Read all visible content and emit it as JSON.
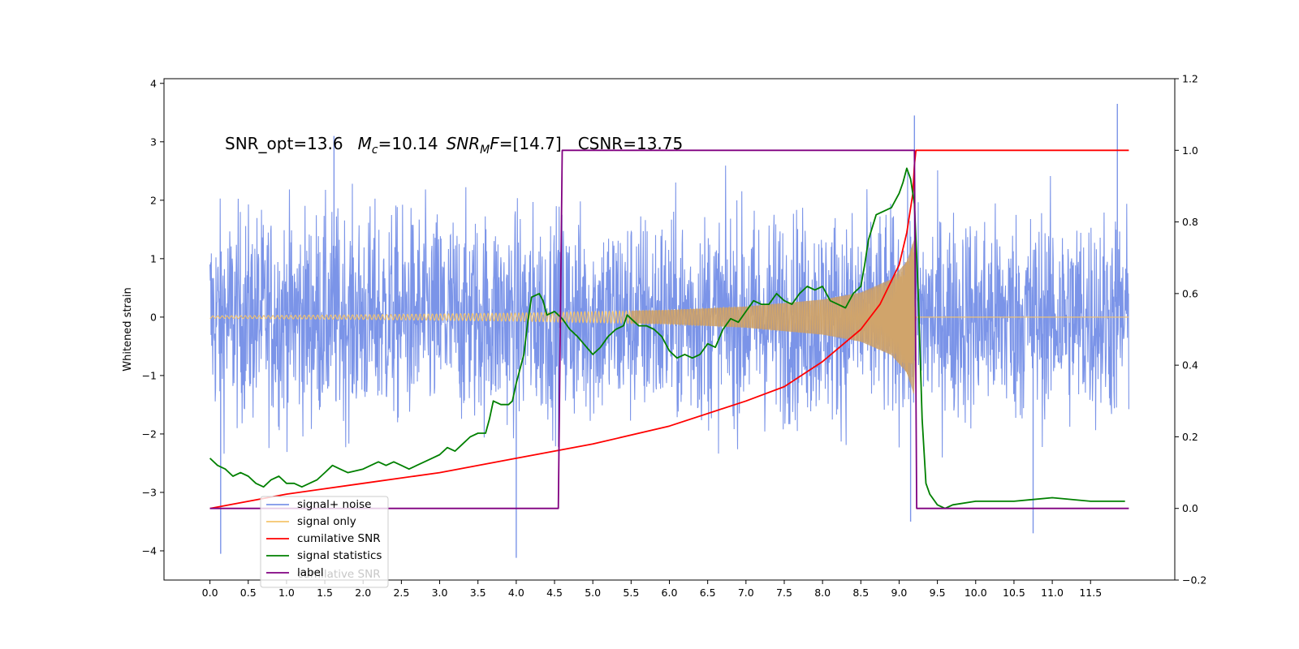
{
  "chart_data": {
    "type": "line",
    "ylabel": "Whitened strain",
    "xlabel": "",
    "xlim": [
      -0.6,
      12.6
    ],
    "ylim": [
      -4.5,
      4.08
    ],
    "y2lim": [
      -0.2,
      1.2
    ],
    "xticks": [
      "0.0",
      "0.5",
      "1.0",
      "1.5",
      "2.0",
      "2.5",
      "3.0",
      "3.5",
      "4.0",
      "4.5",
      "5.0",
      "5.5",
      "6.0",
      "6.5",
      "7.0",
      "7.5",
      "8.0",
      "8.5",
      "9.0",
      "9.5",
      "10.0",
      "10.5",
      "11.0",
      "11.5"
    ],
    "yticks": [
      "4",
      "3",
      "2",
      "1",
      "0",
      "−1",
      "−2",
      "−3",
      "−4"
    ],
    "y2ticks": [
      "1.2",
      "1.0",
      "0.8",
      "0.6",
      "0.4",
      "0.2",
      "0.0",
      "−0.2"
    ],
    "annotation": {
      "snr_opt": "SNR_opt=13.6",
      "mc_symbol": "M",
      "mc_sub": "c",
      "mc_value": "=10.14",
      "snrmf_symbol": "SNR",
      "snrmf_sub": "M",
      "snrmf_sym2": "F",
      "snrmf_value": "=[14.7]",
      "csnr": "CSNR=13.75"
    },
    "legend": {
      "position": "lower-left",
      "entries": [
        {
          "label": "signal+ noise",
          "color": "#7b94e8"
        },
        {
          "label": "signal only",
          "color": "#f5c46c"
        },
        {
          "label": "cumilative SNR",
          "color": "#ff0000"
        },
        {
          "label": "signal statistics",
          "color": "#008000"
        },
        {
          "label": "label",
          "color": "#800080"
        }
      ],
      "overlapped_text": "cumilative SNR"
    },
    "series": [
      {
        "name": "signal+ noise",
        "axis": "left",
        "color": "#7b94e8",
        "description": "noise band",
        "band_sigma": 0.9,
        "x_range": [
          0.0,
          12.0
        ],
        "spikes": [
          [
            0.14,
            -4.05
          ],
          [
            4.0,
            -4.12
          ],
          [
            9.2,
            3.45
          ],
          [
            9.15,
            -3.5
          ],
          [
            10.75,
            -3.7
          ],
          [
            11.85,
            3.65
          ],
          [
            1.62,
            3.1
          ]
        ]
      },
      {
        "name": "signal only",
        "axis": "left",
        "color": "#f5c46c",
        "envelope_points": [
          [
            0.0,
            0.02
          ],
          [
            2.0,
            0.04
          ],
          [
            4.0,
            0.07
          ],
          [
            6.0,
            0.12
          ],
          [
            7.0,
            0.18
          ],
          [
            8.0,
            0.3
          ],
          [
            8.5,
            0.42
          ],
          [
            8.9,
            0.65
          ],
          [
            9.1,
            0.95
          ],
          [
            9.2,
            1.35
          ],
          [
            9.22,
            0.0
          ],
          [
            12.0,
            0.0
          ]
        ]
      },
      {
        "name": "cumilative SNR",
        "axis": "right",
        "color": "#ff0000",
        "x": [
          0.0,
          1.0,
          2.0,
          3.0,
          4.0,
          5.0,
          6.0,
          7.0,
          7.5,
          8.0,
          8.5,
          8.75,
          9.0,
          9.1,
          9.18,
          9.2,
          9.22,
          12.0
        ],
        "y": [
          0.0,
          0.04,
          0.07,
          0.1,
          0.14,
          0.18,
          0.23,
          0.3,
          0.34,
          0.41,
          0.5,
          0.57,
          0.68,
          0.77,
          0.88,
          0.96,
          1.0,
          1.0
        ]
      },
      {
        "name": "signal statistics",
        "axis": "right",
        "color": "#008000",
        "x": [
          0.0,
          0.1,
          0.2,
          0.3,
          0.4,
          0.5,
          0.6,
          0.7,
          0.8,
          0.9,
          1.0,
          1.1,
          1.2,
          1.3,
          1.4,
          1.5,
          1.6,
          1.7,
          1.8,
          2.0,
          2.1,
          2.2,
          2.3,
          2.4,
          2.5,
          2.6,
          2.7,
          2.8,
          2.9,
          3.0,
          3.1,
          3.2,
          3.3,
          3.4,
          3.5,
          3.6,
          3.65,
          3.7,
          3.8,
          3.9,
          3.95,
          4.0,
          4.1,
          4.15,
          4.2,
          4.3,
          4.35,
          4.4,
          4.5,
          4.6,
          4.7,
          4.8,
          5.0,
          5.1,
          5.2,
          5.3,
          5.4,
          5.45,
          5.5,
          5.6,
          5.7,
          5.8,
          5.9,
          6.0,
          6.1,
          6.2,
          6.3,
          6.4,
          6.5,
          6.6,
          6.7,
          6.8,
          6.9,
          7.0,
          7.1,
          7.2,
          7.3,
          7.4,
          7.5,
          7.6,
          7.7,
          7.8,
          7.9,
          8.0,
          8.1,
          8.2,
          8.3,
          8.4,
          8.5,
          8.55,
          8.6,
          8.7,
          8.8,
          8.9,
          9.0,
          9.05,
          9.1,
          9.15,
          9.2,
          9.25,
          9.3,
          9.35,
          9.4,
          9.5,
          9.6,
          9.7,
          10.0,
          10.5,
          11.0,
          11.5,
          11.95
        ],
        "y": [
          0.14,
          0.12,
          0.11,
          0.09,
          0.1,
          0.09,
          0.07,
          0.06,
          0.08,
          0.09,
          0.07,
          0.07,
          0.06,
          0.07,
          0.08,
          0.1,
          0.12,
          0.11,
          0.1,
          0.11,
          0.12,
          0.13,
          0.12,
          0.13,
          0.12,
          0.11,
          0.12,
          0.13,
          0.14,
          0.15,
          0.17,
          0.16,
          0.18,
          0.2,
          0.21,
          0.21,
          0.25,
          0.3,
          0.29,
          0.29,
          0.3,
          0.35,
          0.43,
          0.52,
          0.59,
          0.6,
          0.58,
          0.54,
          0.55,
          0.53,
          0.5,
          0.48,
          0.43,
          0.45,
          0.48,
          0.5,
          0.51,
          0.54,
          0.53,
          0.51,
          0.51,
          0.5,
          0.48,
          0.44,
          0.42,
          0.43,
          0.42,
          0.43,
          0.46,
          0.45,
          0.5,
          0.53,
          0.52,
          0.55,
          0.58,
          0.57,
          0.57,
          0.6,
          0.58,
          0.57,
          0.6,
          0.62,
          0.61,
          0.62,
          0.58,
          0.57,
          0.56,
          0.6,
          0.62,
          0.68,
          0.75,
          0.82,
          0.83,
          0.84,
          0.88,
          0.91,
          0.95,
          0.92,
          0.85,
          0.6,
          0.25,
          0.07,
          0.04,
          0.01,
          0.0,
          0.01,
          0.02,
          0.02,
          0.03,
          0.02,
          0.02
        ],
        "y_mapping_note": ""
      },
      {
        "name": "label",
        "axis": "right",
        "color": "#800080",
        "x": [
          0.0,
          4.55,
          4.6,
          9.2,
          9.23,
          12.0
        ],
        "y": [
          0.0,
          0.0,
          1.0,
          1.0,
          0.0,
          0.0
        ]
      }
    ],
    "grid": false
  }
}
